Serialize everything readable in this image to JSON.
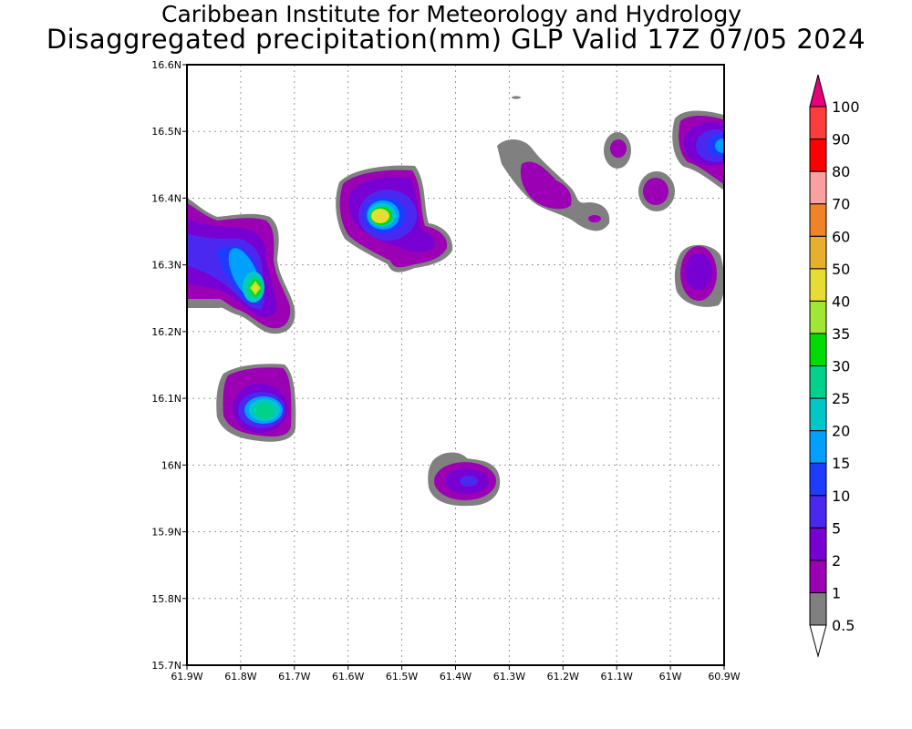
{
  "title": {
    "line1": "Caribbean Institute for Meteorology and Hydrology",
    "line2": "Disaggregated precipitation(mm) GLP Valid 17Z 07/05 2024"
  },
  "map": {
    "lon_range": [
      -61.9,
      -60.9
    ],
    "lat_range": [
      15.7,
      16.6
    ],
    "x_ticks": [
      "61.9W",
      "61.8W",
      "61.7W",
      "61.6W",
      "61.5W",
      "61.4W",
      "61.3W",
      "61.2W",
      "61.1W",
      "61W",
      "60.9W"
    ],
    "y_ticks": [
      "15.7N",
      "15.8N",
      "15.9N",
      "16N",
      "16.1N",
      "16.2N",
      "16.3N",
      "16.4N",
      "16.5N",
      "16.6N"
    ],
    "grid": true
  },
  "colorbar": {
    "labels": [
      "0.5",
      "1",
      "2",
      "5",
      "10",
      "15",
      "20",
      "25",
      "30",
      "35",
      "40",
      "50",
      "60",
      "70",
      "80",
      "90",
      "100"
    ],
    "colors": [
      "#808080",
      "#9b00b4",
      "#7800d2",
      "#4b28f0",
      "#1e3cff",
      "#00a0ff",
      "#00c8c8",
      "#00d28c",
      "#00dc00",
      "#a0e632",
      "#e6dc32",
      "#e6af2d",
      "#f08228",
      "#faa0a0",
      "#ff0000",
      "#ff3c3c"
    ],
    "under_color": "#ffffff",
    "over_color": "#e6007a"
  }
}
